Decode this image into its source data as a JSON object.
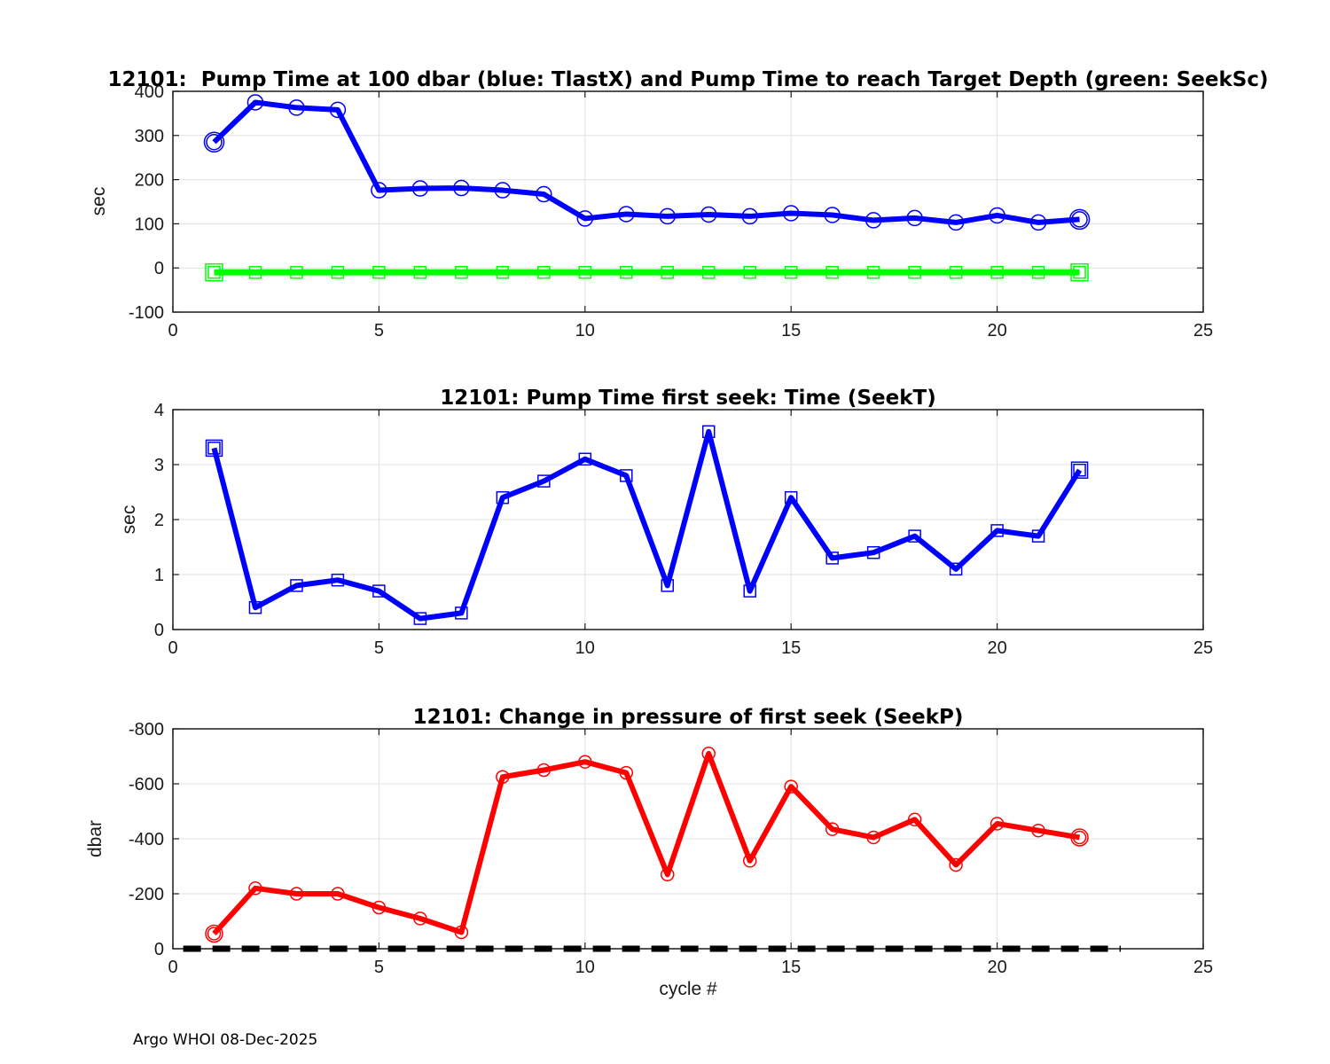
{
  "figure": {
    "xlabel": "cycle #",
    "footer": "Argo WHOI 08-Dec-2025",
    "background_color": "#ffffff",
    "grid_color": "#e0e0e0",
    "axis_color": "#1a1a1a"
  },
  "chart_data": [
    {
      "type": "line",
      "title": "12101:  Pump Time at 100 dbar (blue: TlastX) and Pump Time to reach Target Depth (green: SeekSc)",
      "ylabel": "sec",
      "xlim": [
        0,
        25
      ],
      "ylim": [
        -100,
        400
      ],
      "xticks": [
        0,
        5,
        10,
        15,
        20,
        25
      ],
      "yticks": [
        -100,
        0,
        100,
        200,
        300,
        400
      ],
      "grid": true,
      "x": [
        1,
        2,
        3,
        4,
        5,
        6,
        7,
        8,
        9,
        10,
        11,
        12,
        13,
        14,
        15,
        16,
        17,
        18,
        19,
        20,
        21,
        22
      ],
      "series": [
        {
          "name": "TlastX",
          "color": "#0000ff",
          "marker": "circle",
          "marker_size": 17,
          "end_marker_size": 22,
          "line_width": 6,
          "values": [
            285,
            375,
            363,
            358,
            176,
            180,
            181,
            176,
            167,
            112,
            122,
            117,
            121,
            117,
            124,
            120,
            108,
            113,
            103,
            119,
            103,
            110
          ]
        },
        {
          "name": "SeekSc",
          "color": "#00ff00",
          "marker": "square",
          "marker_size": 13,
          "end_marker_size": 19,
          "line_width": 7,
          "values": [
            -10,
            -10,
            -10,
            -10,
            -10,
            -10,
            -10,
            -10,
            -10,
            -10,
            -10,
            -10,
            -10,
            -10,
            -10,
            -10,
            -10,
            -10,
            -10,
            -10,
            -10,
            -10
          ]
        }
      ]
    },
    {
      "type": "line",
      "title": "12101: Pump Time first seek: Time (SeekT)",
      "ylabel": "sec",
      "xlim": [
        0,
        25
      ],
      "ylim": [
        0,
        4
      ],
      "xticks": [
        0,
        5,
        10,
        15,
        20,
        25
      ],
      "yticks": [
        0,
        1,
        2,
        3,
        4
      ],
      "grid": true,
      "x": [
        1,
        2,
        3,
        4,
        5,
        6,
        7,
        8,
        9,
        10,
        11,
        12,
        13,
        14,
        15,
        16,
        17,
        18,
        19,
        20,
        21,
        22
      ],
      "series": [
        {
          "name": "SeekT",
          "color": "#0000ff",
          "marker": "square",
          "marker_size": 13,
          "end_marker_size": 18,
          "line_width": 6,
          "values": [
            3.3,
            0.4,
            0.8,
            0.9,
            0.7,
            0.2,
            0.3,
            2.4,
            2.7,
            3.1,
            2.8,
            0.8,
            3.6,
            0.7,
            2.4,
            1.3,
            1.4,
            1.7,
            1.1,
            1.8,
            1.7,
            2.9
          ]
        }
      ]
    },
    {
      "type": "line",
      "title": "12101: Change in pressure of first seek (SeekP)",
      "ylabel": "dbar",
      "xlabel": "cycle #",
      "xlim": [
        0,
        25
      ],
      "ylim": [
        -800,
        0
      ],
      "reverse_y": true,
      "xticks": [
        0,
        5,
        10,
        15,
        20,
        25
      ],
      "yticks": [
        -800,
        -600,
        -400,
        -200,
        0
      ],
      "grid": true,
      "x": [
        1,
        2,
        3,
        4,
        5,
        6,
        7,
        8,
        9,
        10,
        11,
        12,
        13,
        14,
        15,
        16,
        17,
        18,
        19,
        20,
        21,
        22
      ],
      "series": [
        {
          "name": "SeekP",
          "color": "#ff0000",
          "marker": "circle",
          "marker_size": 14,
          "end_marker_size": 19,
          "line_width": 6,
          "values": [
            -55,
            -220,
            -200,
            -200,
            -150,
            -110,
            -60,
            -625,
            -650,
            -680,
            -640,
            -270,
            -710,
            -320,
            -590,
            -435,
            -405,
            -470,
            -305,
            -455,
            -430,
            -405
          ]
        }
      ],
      "reference_line": {
        "value": 0,
        "color": "#000000",
        "style": "dashed",
        "x_start": 0.25,
        "x_end": 23,
        "width": 7
      }
    }
  ]
}
